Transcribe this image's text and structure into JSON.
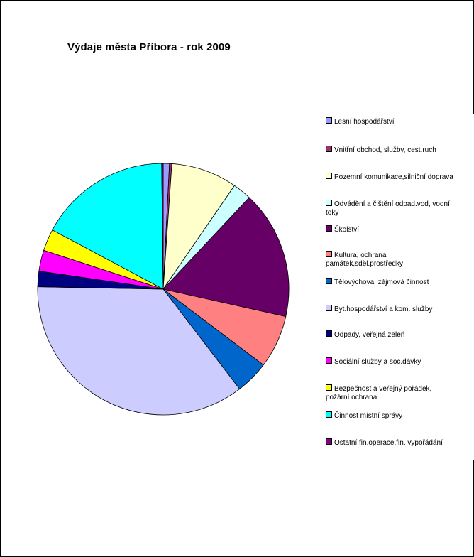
{
  "chart_data": {
    "type": "pie",
    "title": "Výdaje města Příbora - rok 2009",
    "legend_position": "right",
    "series": [
      {
        "name": "Lesní hospodářství",
        "value": 0.8,
        "color": "#9999ff"
      },
      {
        "name": "Vnitřní obchod, služby, cest.ruch",
        "value": 0.3,
        "color": "#993366"
      },
      {
        "name": "Pozemní komunikace,silniční doprava",
        "value": 8.5,
        "color": "#ffffcc"
      },
      {
        "name": "Odvádění a čištění odpad.vod, vodní\ntoky",
        "value": 2.4,
        "color": "#ccffff"
      },
      {
        "name": "Školství",
        "value": 16.5,
        "color": "#660066"
      },
      {
        "name": "Kultura, ochrana\npamátek,sděl.prostředky",
        "value": 6.8,
        "color": "#ff8080"
      },
      {
        "name": "Tělovýchova, zájmová činnost",
        "value": 4.3,
        "color": "#0066cc"
      },
      {
        "name": "Byt.hospodářství a kom. služby",
        "value": 35.7,
        "color": "#ccccff"
      },
      {
        "name": "Odpady, veřejná zeleň",
        "value": 2.0,
        "color": "#000080"
      },
      {
        "name": "Sociální služby a soc.dávky",
        "value": 2.7,
        "color": "#ff00ff"
      },
      {
        "name": "Bezpečnost a veřejný pořádek,\npožární ochrana",
        "value": 2.8,
        "color": "#ffff00"
      },
      {
        "name": "Činnost místní správy",
        "value": 17.0,
        "color": "#00ffff"
      },
      {
        "name": "Ostatní fin.operace,fin. vypořádání",
        "value": 0.2,
        "color": "#800080"
      }
    ]
  },
  "legend_labels": [
    "Lesní hospodářství",
    "Vnitřní obchod, služby, cest.ruch",
    "Pozemní komunikace,silniční doprava",
    "Odvádění a čištění odpad.vod, vodní\ntoky",
    "Školství",
    "Kultura, ochrana\npamátek,sděl.prostředky",
    "Tělovýchova, zájmová činnost",
    "Byt.hospodářství a kom. služby",
    "Odpady, veřejná zeleň",
    "Sociální služby a soc.dávky",
    "Bezpečnost a veřejný pořádek,\npožární ochrana",
    "Činnost místní správy",
    "Ostatní fin.operace,fin. vypořádání"
  ]
}
